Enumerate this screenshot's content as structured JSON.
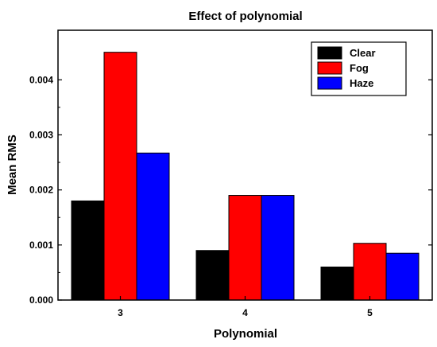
{
  "chart_data": {
    "type": "bar",
    "title": "Effect of polynomial",
    "xlabel": "Polynomial",
    "ylabel": "Mean RMS",
    "categories": [
      "3",
      "4",
      "5"
    ],
    "series": [
      {
        "name": "Clear",
        "color": "#000000",
        "values": [
          0.0018,
          0.0009,
          0.0006
        ]
      },
      {
        "name": "Fog",
        "color": "#ff0000",
        "values": [
          0.0045,
          0.0019,
          0.00103
        ]
      },
      {
        "name": "Haze",
        "color": "#0000ff",
        "values": [
          0.00267,
          0.0019,
          0.00085
        ]
      }
    ],
    "ylim": [
      0,
      0.0049
    ],
    "yticks": [
      "0.000",
      "0.001",
      "0.002",
      "0.003",
      "0.004"
    ],
    "ytick_values": [
      0,
      0.001,
      0.002,
      0.003,
      0.004
    ],
    "legend_position": "top-right",
    "grid": false
  }
}
